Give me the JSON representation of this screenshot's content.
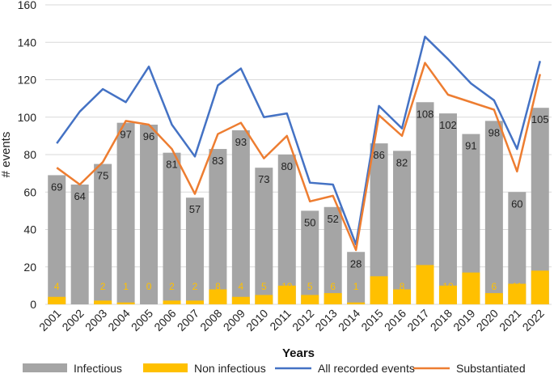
{
  "chart_data": {
    "type": "bar",
    "title": "",
    "xlabel": "Years",
    "ylabel": "# events",
    "ylim": [
      0,
      160
    ],
    "yticks": [
      0,
      20,
      40,
      60,
      80,
      100,
      120,
      140,
      160
    ],
    "categories": [
      "2001",
      "2002",
      "2003",
      "2004",
      "2005",
      "2006",
      "2007",
      "2008",
      "2009",
      "2010",
      "2011",
      "2012",
      "2013",
      "2014",
      "2015",
      "2016",
      "2017",
      "2018",
      "2019",
      "2020",
      "2021",
      "2022"
    ],
    "series": [
      {
        "name": "Infectious",
        "type": "bar",
        "color": "#a5a5a5",
        "values": [
          69,
          64,
          75,
          97,
          96,
          81,
          57,
          83,
          93,
          73,
          80,
          50,
          52,
          28,
          86,
          82,
          108,
          102,
          91,
          98,
          60,
          105
        ],
        "labels": [
          "69",
          "64",
          "75",
          "97",
          "96",
          "81",
          "57",
          "83",
          "93",
          "73",
          "80",
          "50",
          "52",
          "28",
          "86",
          "82",
          "108",
          "102",
          "91",
          "98",
          "60",
          "105"
        ]
      },
      {
        "name": "Non infectious",
        "type": "bar",
        "color": "#ffc000",
        "values": [
          4,
          0,
          2,
          1,
          0,
          2,
          2,
          8,
          4,
          5,
          10,
          5,
          6,
          1,
          15,
          8,
          21,
          10,
          17,
          6,
          11,
          18
        ],
        "labels": [
          "4",
          "",
          "2",
          "1",
          "0",
          "2",
          "2",
          "8",
          "4",
          "5",
          "10",
          "5",
          "6",
          "1",
          "15",
          "8",
          "21",
          "10",
          "17",
          "6",
          "11",
          "18"
        ]
      },
      {
        "name": "All recorded events",
        "type": "line",
        "color": "#4472c4",
        "values": [
          86,
          103,
          115,
          108,
          127,
          96,
          79,
          117,
          126,
          100,
          102,
          65,
          64,
          32,
          106,
          94,
          143,
          131,
          118,
          109,
          83,
          130
        ]
      },
      {
        "name": "Substantiated",
        "type": "line",
        "color": "#ed7d31",
        "values": [
          73,
          64,
          76,
          98,
          96,
          83,
          59,
          91,
          97,
          78,
          90,
          55,
          58,
          29,
          101,
          90,
          129,
          112,
          108,
          104,
          71,
          123
        ]
      }
    ],
    "legend_position": "bottom"
  }
}
